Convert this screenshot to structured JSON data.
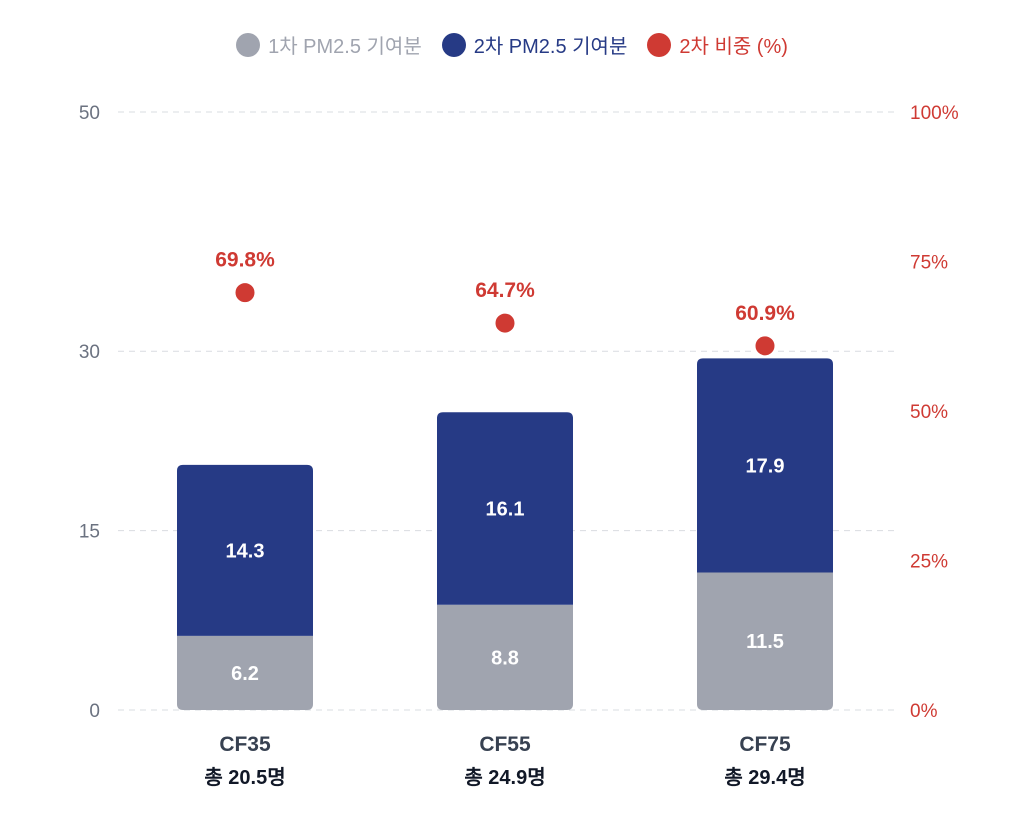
{
  "chart_data": {
    "type": "bar",
    "stacked": true,
    "title": "",
    "categories": [
      "CF35",
      "CF55",
      "CF75"
    ],
    "category_totals": [
      "총 20.5명",
      "총 24.9명",
      "총 29.4명"
    ],
    "series": [
      {
        "name": "1차 PM2.5 기여분",
        "color": "#a0a4af",
        "axis": "left",
        "values": [
          6.2,
          8.8,
          11.5
        ],
        "labels": [
          "6.2",
          "8.8",
          "11.5"
        ]
      },
      {
        "name": "2차 PM2.5 기여분",
        "color": "#263a85",
        "axis": "left",
        "values": [
          14.3,
          16.1,
          17.9
        ],
        "labels": [
          "14.3",
          "16.1",
          "17.9"
        ]
      },
      {
        "name": "2차 비중 (%)",
        "color": "#cf3a33",
        "type": "scatter",
        "axis": "right",
        "values": [
          69.8,
          64.7,
          60.9
        ],
        "labels": [
          "69.8%",
          "64.7%",
          "60.9%"
        ]
      }
    ],
    "y_left": {
      "ylim": [
        0,
        50
      ],
      "ticks": [
        0,
        15,
        30,
        50
      ],
      "tick_labels": [
        "0",
        "15",
        "30",
        "50"
      ]
    },
    "y_right": {
      "ylim": [
        0,
        100
      ],
      "ticks": [
        0,
        25,
        50,
        75,
        100
      ],
      "tick_labels": [
        "0%",
        "25%",
        "50%",
        "75%",
        "100%"
      ]
    },
    "xlabel": "",
    "ylabel": "",
    "grid": true,
    "legend_position": "top-center"
  },
  "legend": [
    {
      "label": "1차 PM2.5 기여분",
      "color": "#a0a4af"
    },
    {
      "label": "2차 PM2.5 기여분",
      "color": "#263a85"
    },
    {
      "label": "2차 비중 (%)",
      "color": "#cf3a33"
    }
  ]
}
